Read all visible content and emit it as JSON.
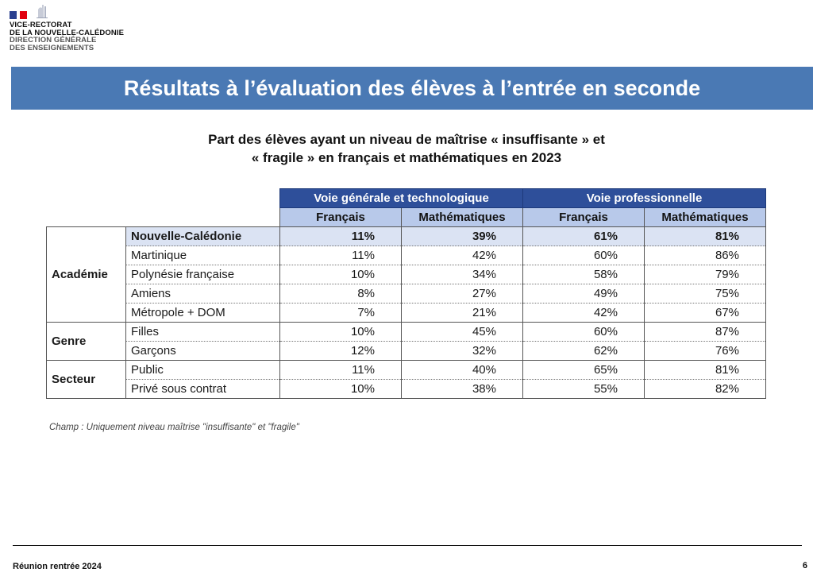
{
  "header": {
    "org_lines": [
      "VICE-RECTORAT",
      "DE LA NOUVELLE-CALÉDONIE",
      "DIRECTION GÉNÉRALE",
      "DES ENSEIGNEMENTS"
    ],
    "flag_colors": {
      "blue": "#2a3f8f",
      "white": "#ffffff",
      "red": "#e1000f"
    }
  },
  "banner": {
    "title": "Résultats à l’évaluation des élèves à l’entrée en seconde",
    "color": "#4a79b4"
  },
  "subtitle": {
    "line1": "Part des élèves ayant un niveau de maîtrise « insuffisante » et",
    "line2": "« fragile » en français et mathématiques en 2023"
  },
  "table": {
    "group_headers": [
      "Voie générale et technologique",
      "Voie professionnelle"
    ],
    "sub_headers": [
      "Français",
      "Mathématiques",
      "Français",
      "Mathématiques"
    ],
    "groups": [
      {
        "category": "Académie",
        "rows": [
          {
            "label": "Nouvelle-Calédonie",
            "values": [
              "11%",
              "39%",
              "61%",
              "81%"
            ],
            "highlight": true
          },
          {
            "label": "Martinique",
            "values": [
              "11%",
              "42%",
              "60%",
              "86%"
            ]
          },
          {
            "label": "Polynésie française",
            "values": [
              "10%",
              "34%",
              "58%",
              "79%"
            ]
          },
          {
            "label": "Amiens",
            "values": [
              "8%",
              "27%",
              "49%",
              "75%"
            ]
          },
          {
            "label": "Métropole + DOM",
            "values": [
              "7%",
              "21%",
              "42%",
              "67%"
            ]
          }
        ]
      },
      {
        "category": "Genre",
        "rows": [
          {
            "label": "Filles",
            "values": [
              "10%",
              "45%",
              "60%",
              "87%"
            ]
          },
          {
            "label": "Garçons",
            "values": [
              "12%",
              "32%",
              "62%",
              "76%"
            ]
          }
        ]
      },
      {
        "category": "Secteur",
        "rows": [
          {
            "label": "Public",
            "values": [
              "11%",
              "40%",
              "65%",
              "81%"
            ]
          },
          {
            "label": "Privé sous contrat",
            "values": [
              "10%",
              "38%",
              "55%",
              "82%"
            ]
          }
        ]
      }
    ],
    "note": "Champ : Uniquement niveau maîtrise \"insuffisante\" et \"fragile\""
  },
  "footer": {
    "label": "Réunion rentrée 2024",
    "page": "6"
  }
}
